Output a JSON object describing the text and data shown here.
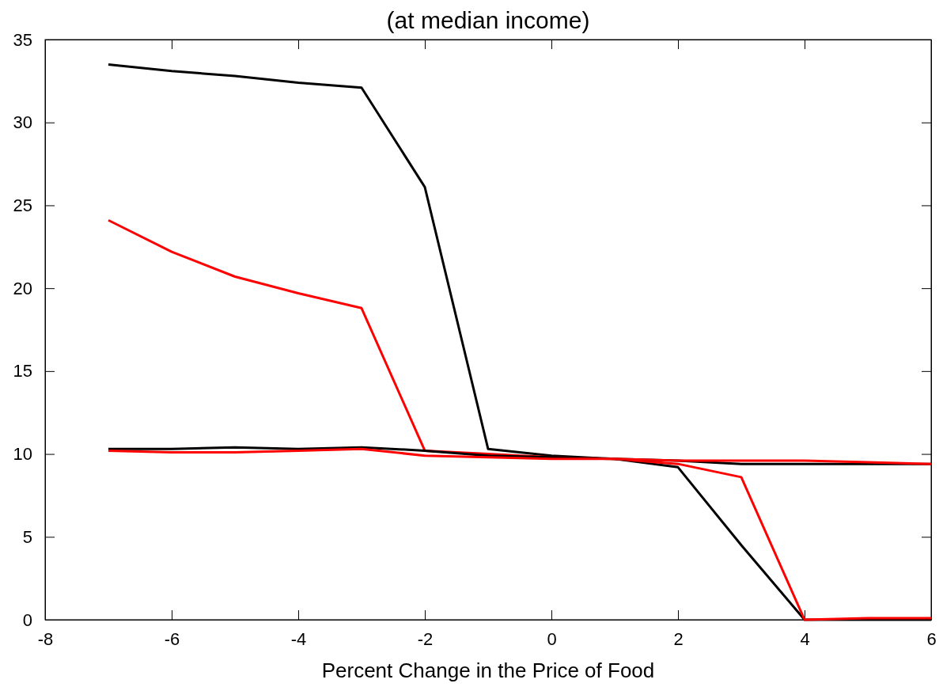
{
  "chart_data": {
    "type": "line",
    "title": "(at median income)",
    "xlabel": "Percent Change in the Price of Food",
    "x": [
      -7,
      -6,
      -5,
      -4,
      -3,
      -2,
      -1,
      0,
      1,
      2,
      3,
      4,
      5,
      6
    ],
    "series": [
      {
        "color": "#000000",
        "values": [
          33.5,
          33.1,
          32.8,
          32.4,
          32.1,
          26.1,
          10.3,
          9.9,
          9.7,
          9.2,
          4.5,
          0,
          0,
          0
        ]
      },
      {
        "color": "#ff0000",
        "values": [
          24.1,
          22.2,
          20.7,
          19.7,
          18.8,
          10.2,
          10.0,
          9.8,
          9.7,
          9.4,
          8.6,
          0,
          0.1,
          0.1
        ]
      },
      {
        "color": "#000000",
        "values": [
          10.3,
          10.3,
          10.4,
          10.3,
          10.4,
          10.2,
          9.9,
          9.8,
          9.7,
          9.6,
          9.4,
          9.4,
          9.4,
          9.4
        ]
      },
      {
        "color": "#ff0000",
        "values": [
          10.2,
          10.1,
          10.1,
          10.2,
          10.3,
          9.9,
          9.8,
          9.7,
          9.7,
          9.6,
          9.6,
          9.6,
          9.5,
          9.4
        ]
      }
    ],
    "xlim": [
      -8,
      6
    ],
    "xticks": [
      -8,
      -6,
      -4,
      -2,
      0,
      2,
      4,
      6
    ],
    "ylim": [
      0,
      35
    ],
    "yticks": [
      0,
      5,
      10,
      15,
      20,
      25,
      30,
      35
    ],
    "grid": false,
    "marker": "none",
    "line_style": "solid"
  }
}
